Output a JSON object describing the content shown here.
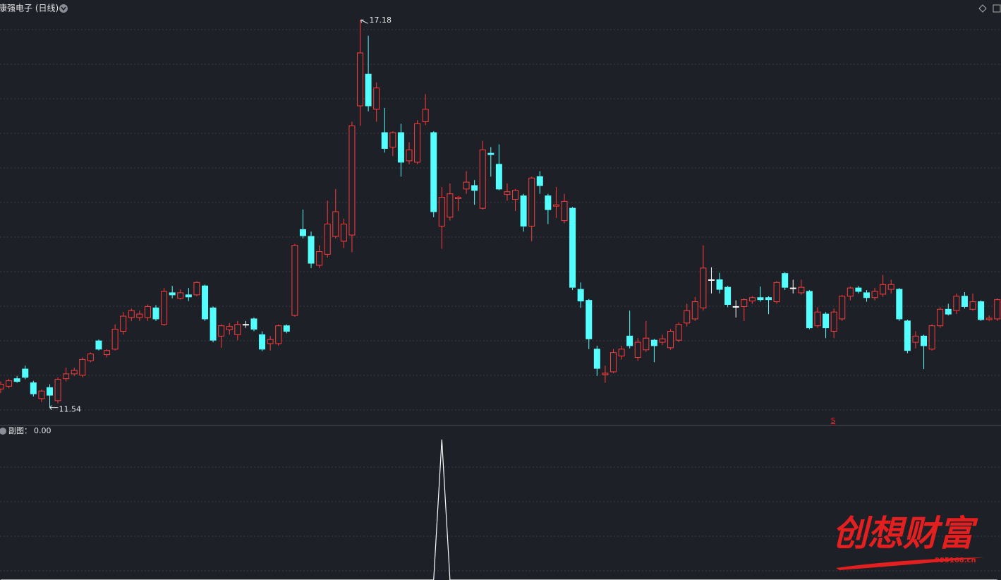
{
  "chart_data": [
    {
      "type": "candlestick",
      "title": "康强电子 (日线)",
      "up_color": "#ff3b3b",
      "down_color": "#54ffff",
      "flat_color": "#ffffff",
      "ylim": [
        11.31,
        17.47
      ],
      "high_mark": 17.18,
      "low_mark": 11.54,
      "signal_label": "S",
      "open": [
        11.81,
        11.85,
        11.96,
        12.1,
        11.9,
        11.67,
        11.83,
        11.64,
        11.96,
        12.03,
        12.01,
        12.22,
        12.51,
        12.31,
        12.39,
        12.65,
        12.85,
        12.85,
        12.85,
        12.99,
        12.75,
        13.21,
        13.13,
        13.18,
        13.18,
        13.31,
        12.99,
        12.58,
        12.67,
        12.6,
        12.75,
        12.83,
        12.6,
        12.47,
        12.47,
        12.73,
        12.88,
        14.13,
        14.03,
        13.61,
        13.77,
        14.03,
        13.96,
        14.05,
        15.93,
        16.39,
        15.88,
        15.54,
        15.33,
        15.54,
        15.13,
        15.11,
        15.7,
        15.54,
        14.18,
        14.31,
        14.58,
        14.72,
        14.77,
        14.44,
        15.24,
        15.08,
        14.64,
        14.57,
        14.62,
        14.18,
        14.9,
        14.62,
        14.47,
        14.26,
        14.44,
        13.26,
        13.1,
        12.39,
        12.02,
        12.06,
        12.29,
        12.58,
        12.27,
        12.38,
        12.52,
        12.49,
        12.41,
        12.52,
        12.77,
        12.83,
        12.99,
        13.4,
        13.4,
        13.29,
        13.01,
        13.01,
        13.09,
        13.14,
        13.14,
        13.08,
        13.49,
        13.28,
        13.21,
        13.23,
        12.73,
        12.9,
        12.65,
        12.83,
        13.16,
        13.28,
        13.21,
        13.14,
        13.19,
        13.26,
        13.26,
        12.8,
        12.49,
        12.58,
        12.39,
        12.73,
        12.97,
        12.95,
        13.16,
        12.97,
        13.08,
        12.82,
        12.83
      ],
      "high": [
        11.92,
        11.96,
        12.0,
        12.15,
        11.93,
        11.8,
        11.88,
        11.98,
        12.12,
        12.12,
        12.27,
        12.34,
        12.53,
        12.39,
        12.75,
        12.93,
        12.98,
        12.95,
        13.04,
        13.03,
        13.28,
        13.31,
        13.26,
        13.28,
        13.38,
        13.33,
        13.01,
        12.75,
        12.77,
        12.8,
        12.8,
        12.85,
        12.65,
        12.58,
        12.75,
        12.75,
        13.92,
        14.42,
        14.1,
        13.9,
        14.55,
        14.72,
        14.29,
        15.7,
        17.18,
        16.95,
        16.27,
        15.9,
        15.56,
        15.67,
        15.4,
        15.72,
        16.1,
        15.56,
        14.75,
        14.8,
        14.62,
        14.98,
        14.85,
        15.42,
        15.33,
        15.37,
        14.8,
        14.72,
        14.65,
        14.9,
        14.98,
        14.65,
        14.75,
        14.65,
        14.46,
        13.36,
        13.12,
        12.44,
        12.15,
        12.39,
        12.44,
        12.95,
        12.55,
        12.8,
        12.54,
        12.6,
        12.68,
        12.78,
        13.05,
        13.15,
        13.9,
        13.58,
        13.5,
        13.31,
        13.1,
        13.13,
        13.16,
        13.3,
        13.16,
        13.38,
        13.51,
        13.4,
        13.4,
        13.25,
        13.0,
        12.93,
        12.98,
        13.18,
        13.3,
        13.31,
        13.25,
        13.28,
        13.47,
        13.4,
        13.28,
        12.82,
        12.65,
        12.6,
        12.75,
        13.0,
        13.05,
        13.2,
        13.22,
        13.2,
        13.1,
        12.88,
        13.13
      ],
      "low": [
        11.75,
        11.82,
        11.9,
        11.95,
        11.7,
        11.62,
        11.54,
        11.6,
        11.92,
        12.0,
        11.98,
        12.2,
        12.37,
        12.27,
        12.37,
        12.6,
        12.8,
        12.8,
        12.8,
        12.8,
        12.73,
        13.13,
        13.11,
        13.09,
        13.16,
        12.8,
        12.49,
        12.41,
        12.6,
        12.52,
        12.7,
        12.65,
        12.36,
        12.37,
        12.44,
        12.62,
        12.86,
        14.0,
        13.57,
        13.57,
        13.72,
        14.0,
        13.86,
        13.8,
        15.64,
        15.85,
        15.7,
        15.25,
        15.2,
        14.9,
        15.08,
        15.08,
        15.65,
        14.31,
        13.85,
        14.26,
        14.4,
        14.65,
        14.49,
        14.42,
        14.9,
        14.7,
        14.55,
        14.4,
        14.1,
        13.96,
        14.65,
        14.21,
        14.3,
        14.22,
        13.25,
        12.99,
        12.39,
        12.0,
        11.9,
        12.04,
        12.24,
        12.4,
        12.22,
        12.35,
        12.2,
        12.45,
        12.38,
        12.49,
        12.72,
        12.8,
        12.95,
        13.2,
        13.2,
        13.0,
        12.85,
        12.8,
        13.05,
        13.08,
        12.9,
        13.05,
        13.25,
        13.2,
        13.18,
        12.68,
        12.7,
        12.55,
        12.55,
        12.8,
        13.1,
        13.2,
        13.08,
        13.1,
        13.15,
        13.2,
        12.8,
        12.33,
        12.4,
        12.1,
        12.37,
        12.7,
        12.88,
        12.9,
        12.98,
        12.95,
        12.8,
        12.8,
        12.8
      ],
      "close": [
        11.88,
        11.93,
        11.92,
        11.98,
        11.74,
        11.78,
        11.72,
        11.95,
        12.03,
        12.08,
        12.24,
        12.32,
        12.39,
        12.37,
        12.68,
        12.87,
        12.95,
        12.9,
        13.01,
        12.83,
        13.23,
        13.18,
        13.21,
        13.15,
        13.36,
        12.83,
        12.52,
        12.73,
        12.72,
        12.75,
        12.75,
        12.68,
        12.39,
        12.53,
        12.73,
        12.65,
        13.9,
        14.04,
        13.64,
        13.81,
        14.21,
        14.39,
        14.21,
        15.64,
        16.7,
        15.93,
        16.19,
        15.31,
        15.54,
        15.11,
        15.29,
        15.67,
        15.88,
        14.39,
        14.6,
        14.65,
        14.6,
        14.82,
        14.7,
        15.29,
        15.22,
        14.72,
        14.68,
        14.7,
        14.18,
        14.88,
        14.77,
        14.42,
        14.49,
        14.54,
        13.29,
        13.09,
        12.54,
        12.11,
        12.04,
        12.34,
        12.39,
        12.44,
        12.49,
        12.55,
        12.44,
        12.54,
        12.65,
        12.75,
        12.95,
        13.08,
        13.57,
        13.4,
        13.26,
        13.04,
        13.01,
        13.11,
        13.14,
        13.11,
        13.11,
        13.36,
        13.29,
        13.28,
        13.29,
        12.7,
        12.93,
        12.7,
        12.93,
        13.16,
        13.28,
        13.23,
        13.14,
        13.23,
        13.33,
        13.33,
        12.83,
        12.37,
        12.58,
        12.44,
        12.73,
        12.97,
        12.9,
        13.16,
        13.01,
        13.08,
        12.82,
        12.84,
        13.11
      ]
    },
    {
      "type": "line",
      "title": "副图：",
      "last_value": {
        "value": 0,
        "label": "0.00"
      },
      "color": "#ffffff",
      "ylim": [
        0,
        1.1
      ],
      "values": [
        0,
        0,
        0,
        0,
        0,
        0,
        0,
        0,
        0,
        0,
        0,
        0,
        0,
        0,
        0,
        0,
        0,
        0,
        0,
        0,
        0,
        0,
        0,
        0,
        0,
        0,
        0,
        0,
        0,
        0,
        0,
        0,
        0,
        0,
        0,
        0,
        0,
        0,
        0,
        0,
        0,
        0,
        0,
        0,
        0,
        0,
        0,
        0,
        0,
        0,
        0,
        0,
        0,
        0,
        1,
        0,
        0,
        0,
        0,
        0,
        0,
        0,
        0,
        0,
        0,
        0,
        0,
        0,
        0,
        0,
        0,
        0,
        0,
        0,
        0,
        0,
        0,
        0,
        0,
        0,
        0,
        0,
        0,
        0,
        0,
        0,
        0,
        0,
        0,
        0,
        0,
        0,
        0,
        0,
        0,
        0,
        0,
        0,
        0,
        0,
        0,
        0,
        0,
        0,
        0,
        0,
        0,
        0,
        0,
        0,
        0,
        0,
        0,
        0,
        0,
        0,
        0,
        0,
        0,
        0,
        0,
        0,
        0
      ]
    }
  ],
  "watermark": {
    "brand": "创想财富",
    "site": "995168.cn"
  }
}
